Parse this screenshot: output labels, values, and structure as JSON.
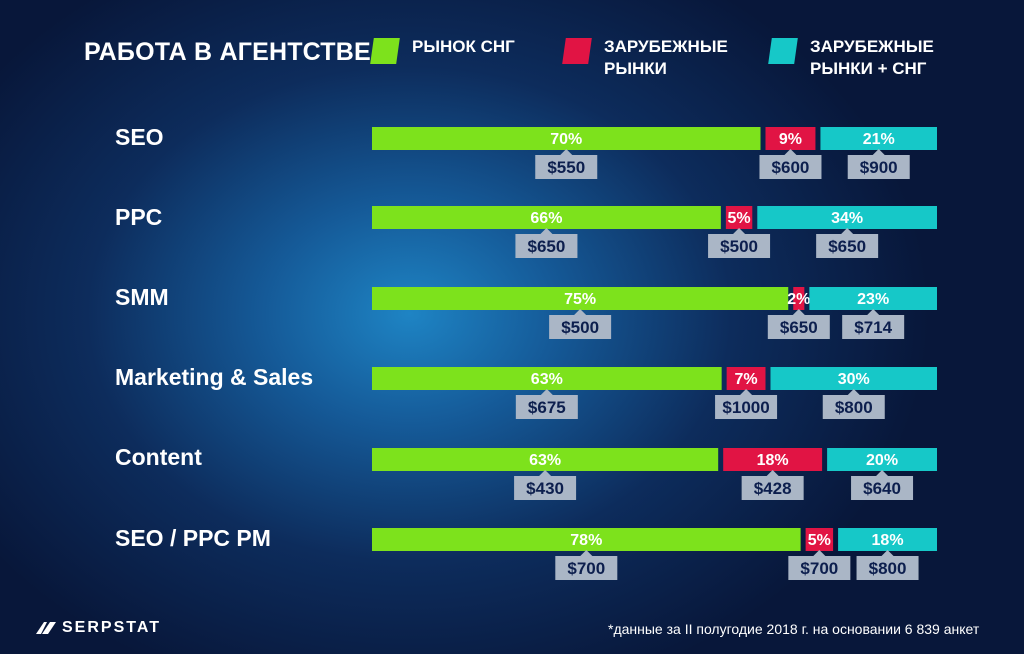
{
  "title": "РАБОТА В АГЕНТСТВЕ",
  "colors": {
    "green": "#7de21c",
    "red": "#e11444",
    "cyan": "#16c8c8",
    "tag_bg": "#aab6c6",
    "tag_text": "#0d1f4e"
  },
  "chart_data": {
    "type": "bar",
    "stacked": true,
    "orientation": "horizontal",
    "unit": "%",
    "legend_position": "top",
    "categories": [
      "SEO",
      "PPC",
      "SMM",
      "Marketing & Sales",
      "Content",
      "SEO / PPC PM"
    ],
    "series": [
      {
        "name": "РЫНОК СНГ",
        "color": "#7de21c",
        "values": [
          70,
          66,
          75,
          63,
          63,
          78
        ],
        "salaries": [
          "$550",
          "$650",
          "$500",
          "$675",
          "$430",
          "$700"
        ]
      },
      {
        "name": "ЗАРУБЕЖНЫЕ РЫНКИ",
        "color": "#e11444",
        "values": [
          9,
          5,
          2,
          7,
          18,
          5
        ],
        "salaries": [
          "$600",
          "$500",
          "$650",
          "$1000",
          "$428",
          "$700"
        ]
      },
      {
        "name": "ЗАРУБЕЖНЫЕ РЫНКИ + СНГ",
        "color": "#16c8c8",
        "values": [
          21,
          34,
          23,
          30,
          20,
          18
        ],
        "salaries": [
          "$900",
          "$650",
          "$714",
          "$800",
          "$640",
          "$800"
        ]
      }
    ]
  },
  "legend": [
    {
      "line1": "РЫНОК СНГ",
      "line2": ""
    },
    {
      "line1": "ЗАРУБЕЖНЫЕ",
      "line2": "РЫНКИ"
    },
    {
      "line1": "ЗАРУБЕЖНЫЕ",
      "line2": "РЫНКИ + СНГ"
    }
  ],
  "logo": {
    "text": "SERPSTAT",
    "icon": "serpstat-logo-icon"
  },
  "footnote": "*данные за II полугодие 2018 г. на основании 6 839 анкет"
}
